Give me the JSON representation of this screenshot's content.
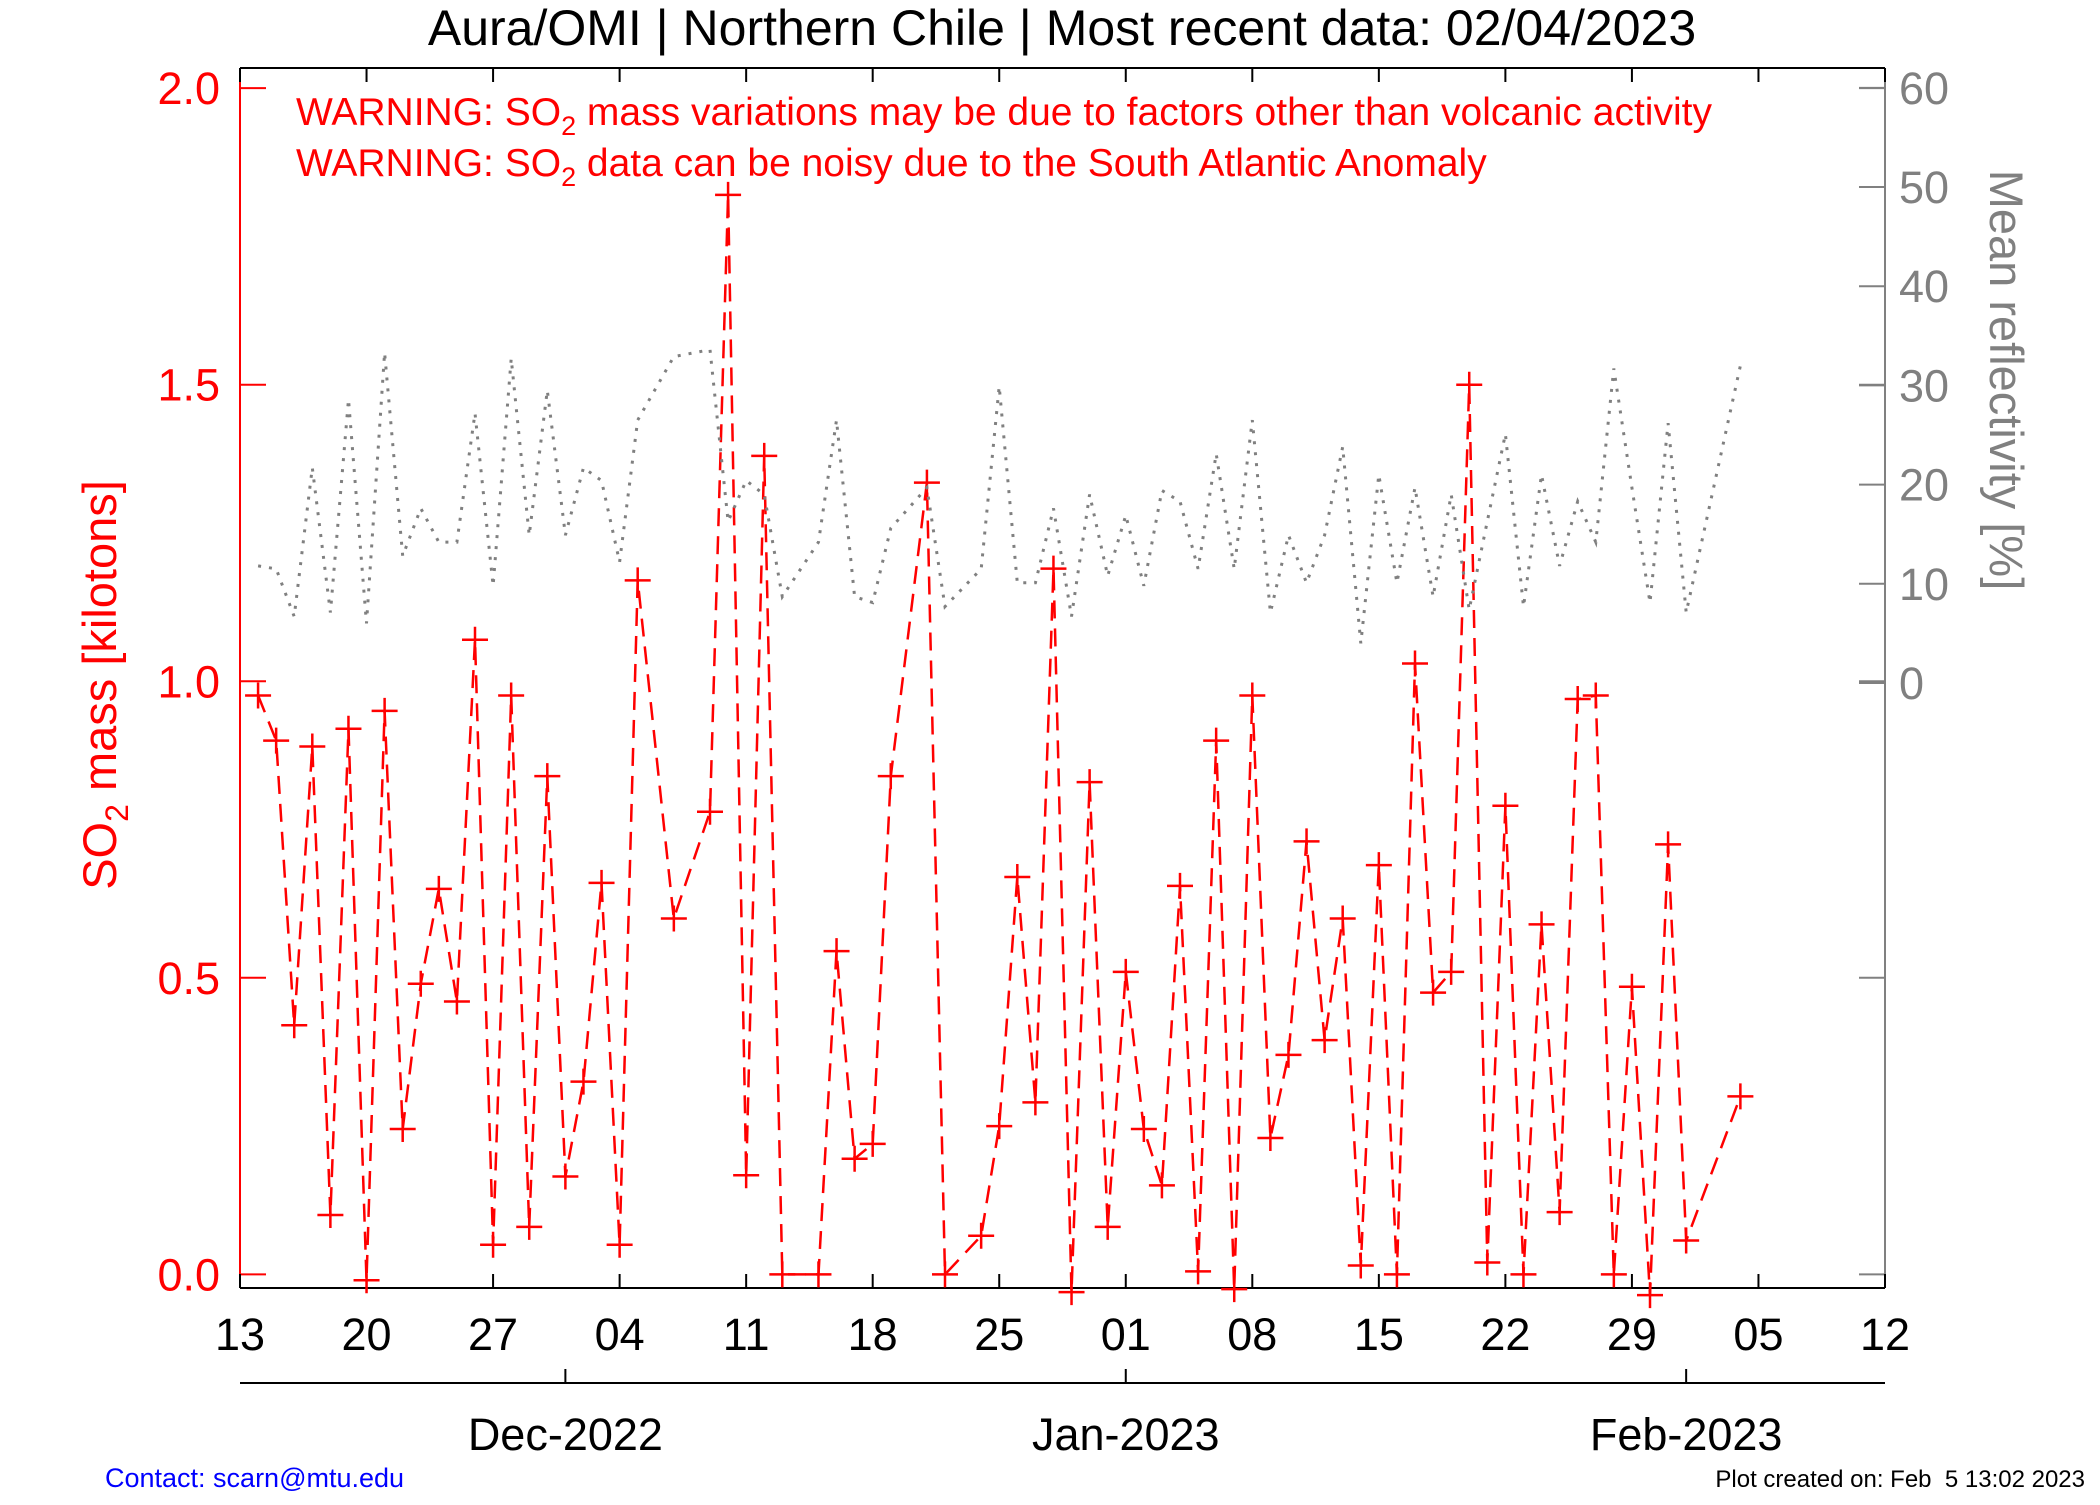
{
  "chart_data": {
    "type": "line",
    "title": "Aura/OMI | Northern Chile | Most recent data: 02/04/2023",
    "warnings": [
      [
        "WARNING: SO",
        "2",
        " mass variations may be due to factors other than volcanic activity"
      ],
      [
        "WARNING: SO",
        "2",
        " data can be noisy due to the South Atlantic Anomaly"
      ]
    ],
    "ylabel": [
      "SO",
      "2",
      " mass [kilotons]"
    ],
    "y2label": "Mean reflectivity [%]",
    "contact": "Contact: scarn@mtu.edu",
    "created": "Plot created on: Feb  5 13:02 2023",
    "x": [
      "2022-11-14",
      "2022-11-15",
      "2022-11-16",
      "2022-11-17",
      "2022-11-18",
      "2022-11-19",
      "2022-11-20",
      "2022-11-21",
      "2022-11-22",
      "2022-11-23",
      "2022-11-24",
      "2022-11-25",
      "2022-11-26",
      "2022-11-27",
      "2022-11-28",
      "2022-11-29",
      "2022-11-30",
      "2022-12-01",
      "2022-12-02",
      "2022-12-03",
      "2022-12-04",
      "2022-12-05",
      "2022-12-07",
      "2022-12-09",
      "2022-12-10",
      "2022-12-11",
      "2022-12-12",
      "2022-12-13",
      "2022-12-15",
      "2022-12-16",
      "2022-12-17",
      "2022-12-18",
      "2022-12-19",
      "2022-12-21",
      "2022-12-22",
      "2022-12-24",
      "2022-12-25",
      "2022-12-26",
      "2022-12-27",
      "2022-12-28",
      "2022-12-29",
      "2022-12-30",
      "2022-12-31",
      "2023-01-01",
      "2023-01-02",
      "2023-01-03",
      "2023-01-04",
      "2023-01-05",
      "2023-01-06",
      "2023-01-07",
      "2023-01-08",
      "2023-01-09",
      "2023-01-10",
      "2023-01-11",
      "2023-01-12",
      "2023-01-13",
      "2023-01-14",
      "2023-01-15",
      "2023-01-16",
      "2023-01-17",
      "2023-01-18",
      "2023-01-19",
      "2023-01-20",
      "2023-01-21",
      "2023-01-22",
      "2023-01-23",
      "2023-01-24",
      "2023-01-25",
      "2023-01-26",
      "2023-01-27",
      "2023-01-28",
      "2023-01-29",
      "2023-01-30",
      "2023-01-31",
      "2023-02-01",
      "2023-02-04"
    ],
    "series": [
      {
        "color": "#ff0000",
        "line_style": "dashed",
        "marker": "plus",
        "values": [
          0.976,
          0.9,
          0.42,
          0.89,
          0.1,
          0.92,
          -0.01,
          0.95,
          0.245,
          0.49,
          0.65,
          0.46,
          1.07,
          0.05,
          0.976,
          0.08,
          0.84,
          0.165,
          0.325,
          0.66,
          0.05,
          1.17,
          0.6,
          0.78,
          1.82,
          0.167,
          1.38,
          0.0,
          0.0,
          0.545,
          0.195,
          0.22,
          0.84,
          1.335,
          0.0,
          0.065,
          0.25,
          0.67,
          0.29,
          1.19,
          -0.03,
          0.83,
          0.08,
          0.51,
          0.245,
          0.15,
          0.655,
          0.005,
          0.9,
          -0.025,
          0.976,
          0.23,
          0.37,
          0.73,
          0.395,
          0.6,
          0.015,
          0.69,
          0.0,
          1.03,
          0.475,
          0.51,
          1.5,
          0.02,
          0.79,
          0.0,
          0.59,
          0.105,
          0.97,
          0.976,
          0.0,
          0.485,
          -0.035,
          0.725,
          0.057,
          0.3
        ]
      },
      {
        "color": "#808080",
        "line_style": "dotted",
        "marker": "none",
        "axis": "y2",
        "values": [
          11.8,
          11.5,
          6.7,
          21.7,
          7.1,
          28.6,
          6.0,
          33.3,
          12.8,
          17.6,
          14.2,
          14.2,
          27.2,
          9.8,
          32.7,
          14.9,
          29.5,
          14.9,
          21.7,
          20.4,
          12.2,
          26.5,
          32.9,
          33.6,
          16.3,
          20.4,
          19.0,
          8.7,
          14.2,
          26.5,
          8.7,
          8.1,
          15.6,
          19.7,
          7.7,
          11.5,
          29.9,
          10.1,
          10.1,
          17.6,
          6.7,
          19.0,
          10.8,
          16.9,
          9.8,
          19.4,
          18.3,
          11.5,
          23.1,
          11.5,
          26.5,
          7.1,
          14.9,
          10.1,
          14.9,
          23.8,
          4.0,
          21.0,
          10.1,
          19.7,
          8.7,
          19.0,
          7.4,
          16.3,
          25.1,
          7.7,
          21.0,
          11.8,
          18.3,
          14.2,
          31.7,
          19.7,
          8.1,
          26.2,
          7.1,
          32.0
        ]
      }
    ],
    "xlim": [
      "2022-11-13",
      "2023-02-12"
    ],
    "xticks": [
      {
        "value": "2022-11-13",
        "label": "13"
      },
      {
        "value": "2022-11-20",
        "label": "20"
      },
      {
        "value": "2022-11-27",
        "label": "27"
      },
      {
        "value": "2022-12-04",
        "label": "04"
      },
      {
        "value": "2022-12-11",
        "label": "11"
      },
      {
        "value": "2022-12-18",
        "label": "18"
      },
      {
        "value": "2022-12-25",
        "label": "25"
      },
      {
        "value": "2023-01-01",
        "label": "01"
      },
      {
        "value": "2023-01-08",
        "label": "08"
      },
      {
        "value": "2023-01-15",
        "label": "15"
      },
      {
        "value": "2023-01-22",
        "label": "22"
      },
      {
        "value": "2023-01-29",
        "label": "29"
      },
      {
        "value": "2023-02-05",
        "label": "05"
      },
      {
        "value": "2023-02-12",
        "label": "12"
      }
    ],
    "month_ticks": [
      {
        "value": "2022-12-01",
        "label": "Dec-2022"
      },
      {
        "value": "2023-01-01",
        "label": "Jan-2023"
      },
      {
        "value": "2023-02-01",
        "label": "Feb-2023"
      }
    ],
    "ylim": [
      -0.023,
      2.034
    ],
    "yticks": [
      {
        "value": 0,
        "label": "0.0"
      },
      0.5,
      {
        "value": 1,
        "label": "1.0"
      },
      1.5,
      {
        "value": 2,
        "label": "2.0"
      }
    ],
    "y2lim": [
      -61,
      62
    ],
    "y2ticks": [
      0,
      10,
      20,
      30,
      40,
      50,
      60
    ]
  }
}
